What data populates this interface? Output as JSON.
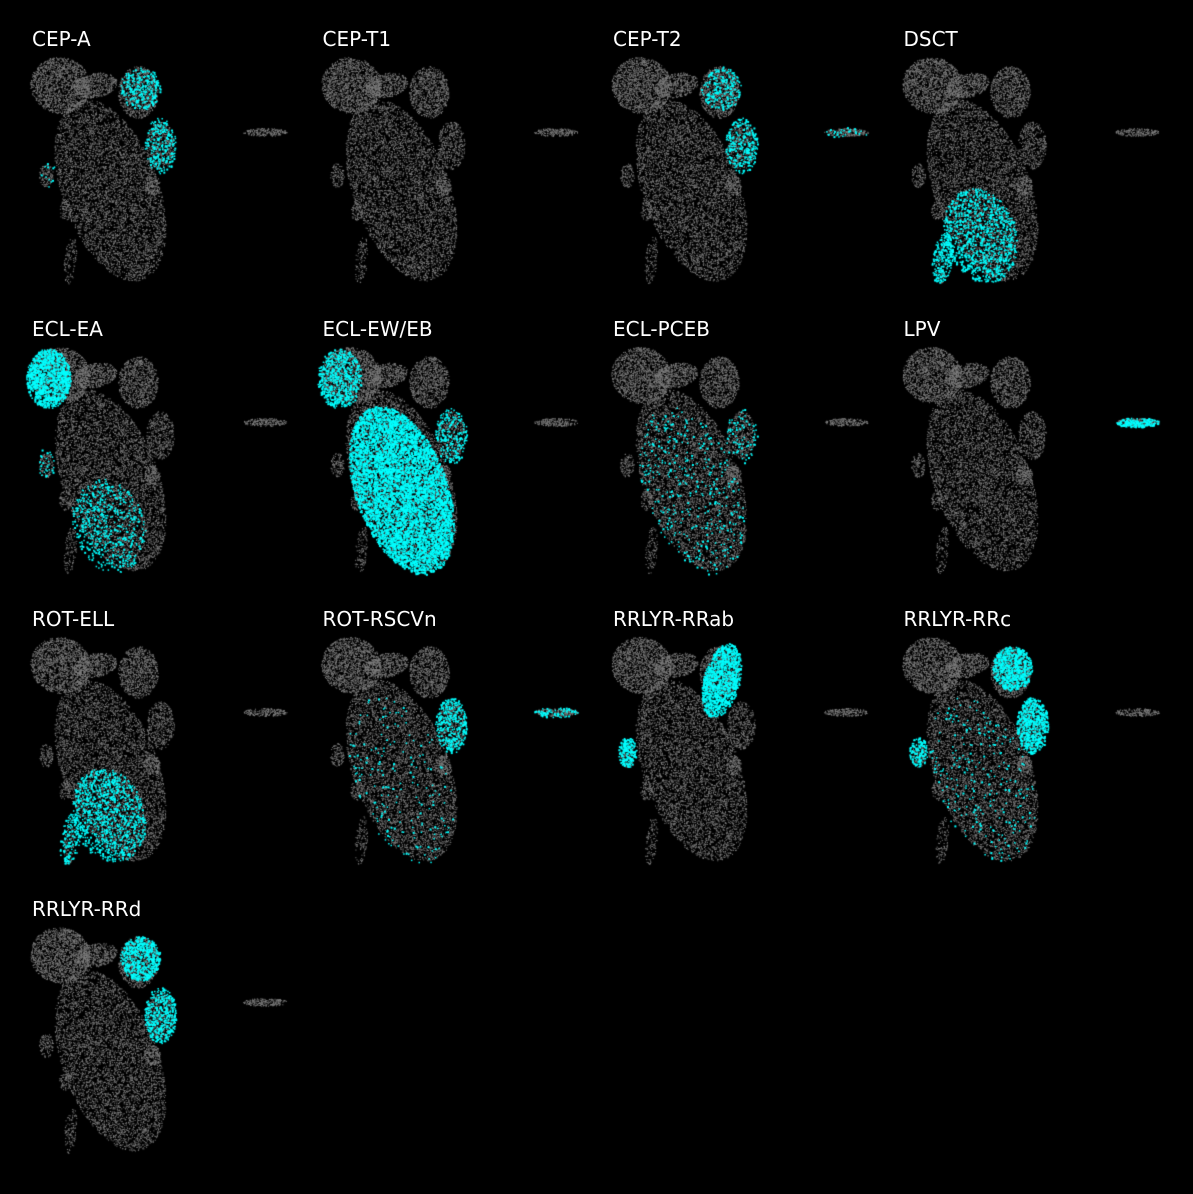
{
  "chart_data": {
    "type": "scatter",
    "layout": "4-column small-multiples grid",
    "background_color": "#000000",
    "base_point_color": "#7f7f7f",
    "highlight_color": "#00ffff",
    "title_color": "#ffffff",
    "axes_visible": false,
    "grid": false,
    "legend": "none",
    "panels": [
      {
        "title": "CEP-A",
        "highlight": [
          {
            "region": "upper-right-ring",
            "weight": 0.35
          },
          {
            "region": "right-lobes",
            "weight": 0.3
          },
          {
            "region": "left-blob",
            "weight": 0.05
          }
        ]
      },
      {
        "title": "CEP-T1",
        "highlight": []
      },
      {
        "title": "CEP-T2",
        "highlight": [
          {
            "region": "upper-right-ring",
            "weight": 0.3
          },
          {
            "region": "right-lobes",
            "weight": 0.35
          },
          {
            "region": "far-right-island",
            "weight": 0.15
          }
        ]
      },
      {
        "title": "DSCT",
        "highlight": [
          {
            "region": "lower-body",
            "weight": 0.35
          },
          {
            "region": "tail",
            "weight": 0.5
          }
        ]
      },
      {
        "title": "ECL-EA",
        "highlight": [
          {
            "region": "upper-left-wing",
            "weight": 1.0
          },
          {
            "region": "lower-body",
            "weight": 0.2
          },
          {
            "region": "left-blob",
            "weight": 0.15
          }
        ]
      },
      {
        "title": "ECL-EW/EB",
        "highlight": [
          {
            "region": "main-body",
            "weight": 0.9
          },
          {
            "region": "upper-left-wing",
            "weight": 0.55
          },
          {
            "region": "right-lobes",
            "weight": 0.3
          }
        ]
      },
      {
        "title": "ECL-PCEB",
        "highlight": [
          {
            "region": "main-body",
            "weight": 0.06
          },
          {
            "region": "right-lobes",
            "weight": 0.1
          }
        ]
      },
      {
        "title": "LPV",
        "highlight": [
          {
            "region": "far-right-island",
            "weight": 1.0
          }
        ]
      },
      {
        "title": "ROT-ELL",
        "highlight": [
          {
            "region": "lower-body",
            "weight": 0.35
          },
          {
            "region": "tail",
            "weight": 0.3
          }
        ]
      },
      {
        "title": "ROT-RSCVn",
        "highlight": [
          {
            "region": "right-lobes",
            "weight": 0.45
          },
          {
            "region": "far-right-island",
            "weight": 0.4
          },
          {
            "region": "main-body",
            "weight": 0.03
          }
        ]
      },
      {
        "title": "RRLYR-RRab",
        "highlight": [
          {
            "region": "upper-right-arc",
            "weight": 1.0
          },
          {
            "region": "left-blob",
            "weight": 0.9
          }
        ]
      },
      {
        "title": "RRLYR-RRc",
        "highlight": [
          {
            "region": "upper-right-ring",
            "weight": 0.85
          },
          {
            "region": "right-lobes",
            "weight": 0.8
          },
          {
            "region": "left-blob",
            "weight": 0.6
          },
          {
            "region": "main-body",
            "weight": 0.04
          }
        ]
      },
      {
        "title": "RRLYR-RRd",
        "highlight": [
          {
            "region": "upper-right-ring",
            "weight": 0.75
          },
          {
            "region": "right-lobes",
            "weight": 0.55
          }
        ]
      }
    ]
  }
}
